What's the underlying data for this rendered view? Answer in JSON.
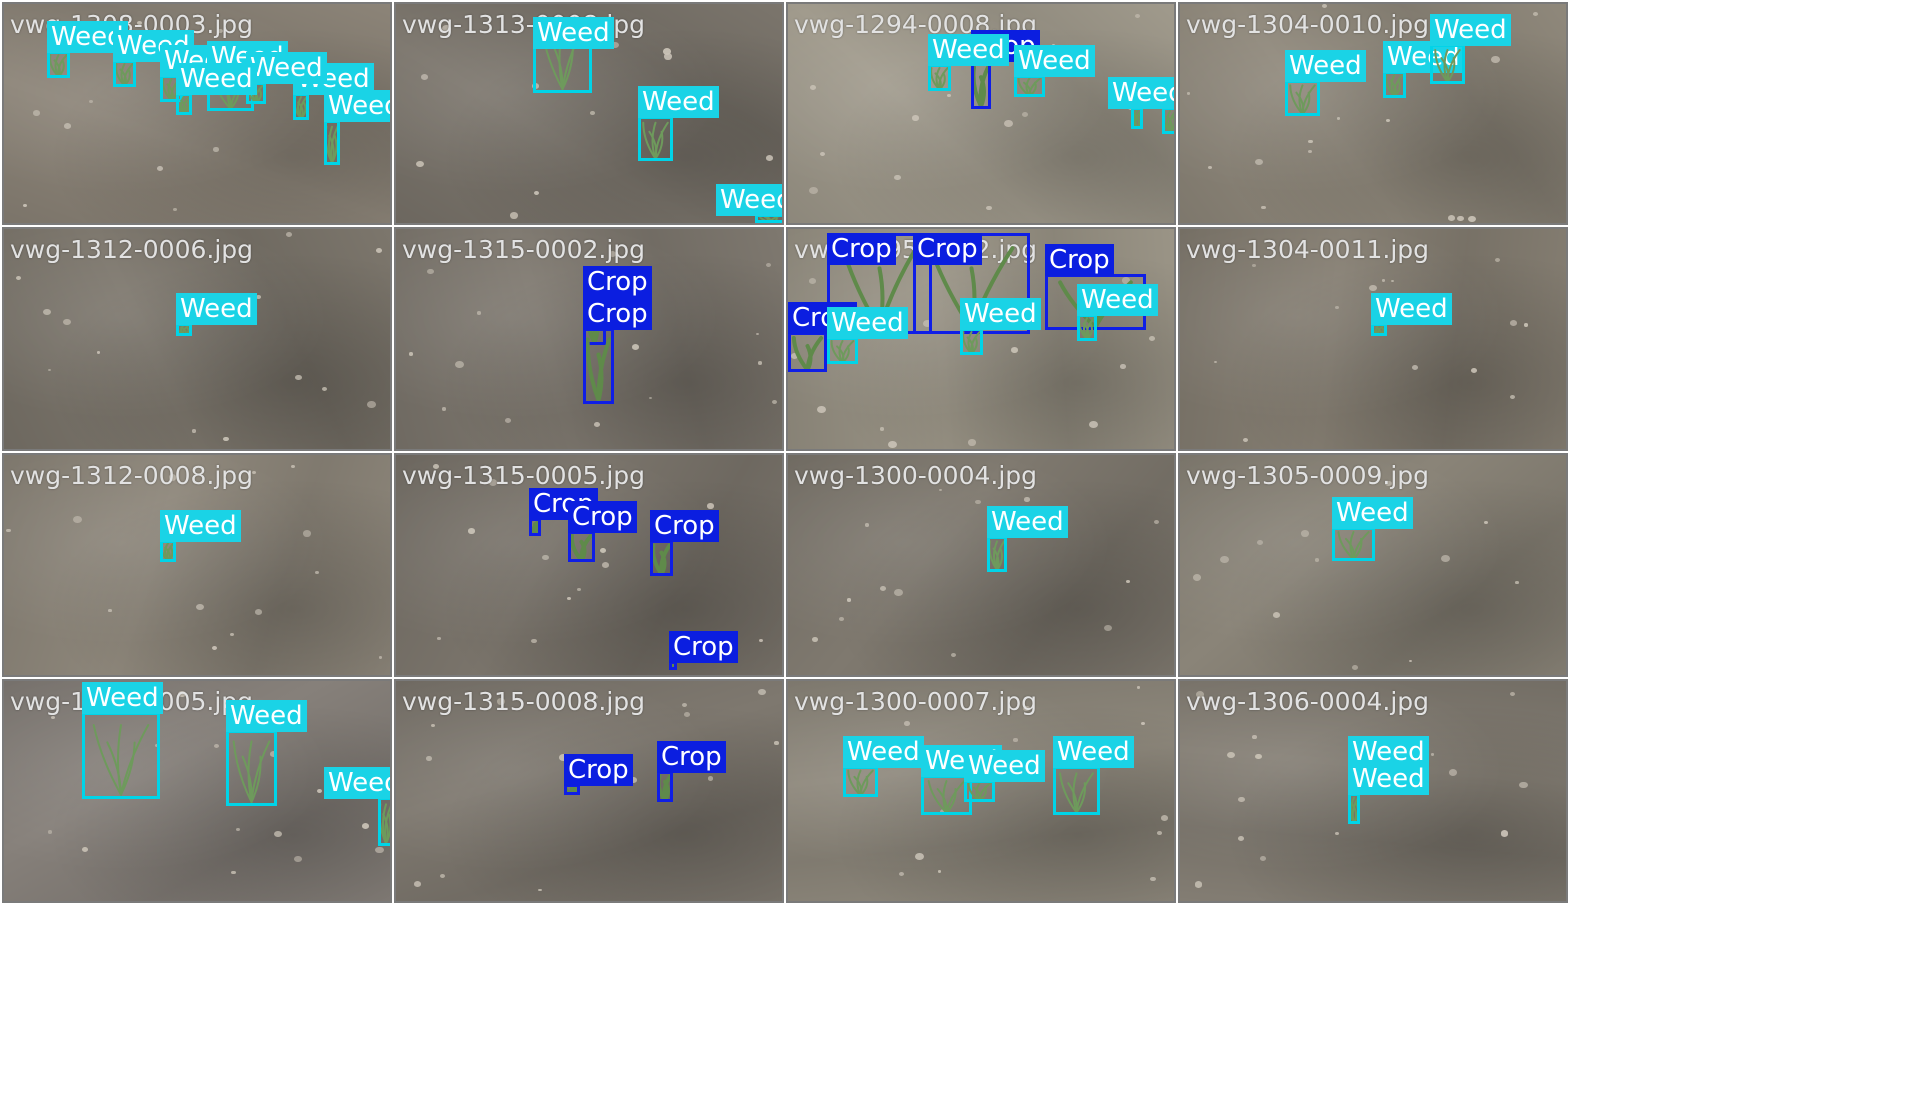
{
  "colors": {
    "weed": "#1ad3e6",
    "crop": "#0b1ee0",
    "border": "#7a7a7a"
  },
  "tiles": [
    {
      "file": "vwg-1308-0003.jpg",
      "tone": "#8c8478",
      "dets": [
        {
          "cls": "Weed",
          "b": [
            0.11,
            0.21,
            0.06,
            0.12
          ]
        },
        {
          "cls": "Weed",
          "b": [
            0.28,
            0.25,
            0.06,
            0.12
          ]
        },
        {
          "cls": "Weed",
          "b": [
            0.4,
            0.32,
            0.06,
            0.12
          ]
        },
        {
          "cls": "Weed",
          "b": [
            0.52,
            0.3,
            0.12,
            0.18
          ]
        },
        {
          "cls": "Weed",
          "b": [
            0.74,
            0.4,
            0.04,
            0.12
          ]
        },
        {
          "cls": "Weed",
          "b": [
            0.82,
            0.52,
            0.04,
            0.2
          ]
        },
        {
          "cls": "Weed",
          "b": [
            0.62,
            0.35,
            0.05,
            0.1
          ]
        },
        {
          "cls": "Weed",
          "b": [
            0.44,
            0.4,
            0.04,
            0.1
          ]
        }
      ]
    },
    {
      "file": "vwg-1313-0008.jpg",
      "tone": "#7b756c",
      "dets": [
        {
          "cls": "Weed",
          "b": [
            0.35,
            0.06,
            0.15,
            0.34
          ]
        },
        {
          "cls": "Weed",
          "b": [
            0.62,
            0.5,
            0.09,
            0.2
          ]
        },
        {
          "cls": "Weed",
          "b": [
            0.92,
            0.94,
            0.08,
            0.04
          ]
        }
      ]
    },
    {
      "file": "vwg-1294-0008.jpg",
      "tone": "#a09a8c",
      "dets": [
        {
          "cls": "Crop",
          "b": [
            0.47,
            0.25,
            0.05,
            0.22
          ]
        },
        {
          "cls": "Weed",
          "b": [
            0.36,
            0.27,
            0.06,
            0.12
          ]
        },
        {
          "cls": "Weed",
          "b": [
            0.58,
            0.32,
            0.08,
            0.1
          ]
        },
        {
          "cls": "Weed",
          "b": [
            0.88,
            0.46,
            0.03,
            0.1
          ]
        },
        {
          "cls": "Weed",
          "b": [
            0.96,
            0.46,
            0.04,
            0.12
          ]
        }
      ]
    },
    {
      "file": "vwg-1304-0010.jpg",
      "tone": "#8f887b",
      "dets": [
        {
          "cls": "Weed",
          "b": [
            0.27,
            0.34,
            0.09,
            0.16
          ]
        },
        {
          "cls": "Weed",
          "b": [
            0.52,
            0.3,
            0.06,
            0.12
          ]
        },
        {
          "cls": "Weed",
          "b": [
            0.64,
            0.18,
            0.09,
            0.18
          ]
        }
      ]
    },
    {
      "file": "vwg-1312-0006.jpg",
      "tone": "#7c766c",
      "dets": [
        {
          "cls": "Weed",
          "b": [
            0.44,
            0.42,
            0.04,
            0.06
          ]
        }
      ]
    },
    {
      "file": "vwg-1315-0002.jpg",
      "tone": "#7e786f",
      "dets": [
        {
          "cls": "Crop",
          "b": [
            0.48,
            0.3,
            0.06,
            0.22
          ]
        },
        {
          "cls": "Crop",
          "b": [
            0.48,
            0.44,
            0.08,
            0.34
          ]
        }
      ]
    },
    {
      "file": "vwg-1295-0012.jpg",
      "tone": "#9a9486",
      "dets": [
        {
          "cls": "Crop",
          "b": [
            0.1,
            0.02,
            0.27,
            0.45
          ]
        },
        {
          "cls": "Crop",
          "b": [
            0.32,
            0.02,
            0.3,
            0.45
          ]
        },
        {
          "cls": "Crop",
          "b": [
            0.66,
            0.2,
            0.26,
            0.25
          ]
        },
        {
          "cls": "Crop",
          "b": [
            0.0,
            0.46,
            0.1,
            0.18
          ]
        },
        {
          "cls": "Weed",
          "b": [
            0.44,
            0.44,
            0.06,
            0.12
          ]
        },
        {
          "cls": "Weed",
          "b": [
            0.74,
            0.38,
            0.05,
            0.12
          ]
        },
        {
          "cls": "Weed",
          "b": [
            0.1,
            0.48,
            0.08,
            0.12
          ]
        }
      ]
    },
    {
      "file": "vwg-1304-0011.jpg",
      "tone": "#857e72",
      "dets": [
        {
          "cls": "Weed",
          "b": [
            0.49,
            0.42,
            0.04,
            0.06
          ]
        }
      ]
    },
    {
      "file": "vwg-1312-0008.jpg",
      "tone": "#8e877b",
      "dets": [
        {
          "cls": "Weed",
          "b": [
            0.4,
            0.38,
            0.04,
            0.1
          ]
        }
      ]
    },
    {
      "file": "vwg-1315-0005.jpg",
      "tone": "#7a746b",
      "dets": [
        {
          "cls": "Crop",
          "b": [
            0.34,
            0.28,
            0.03,
            0.08
          ]
        },
        {
          "cls": "Crop",
          "b": [
            0.44,
            0.34,
            0.07,
            0.14
          ]
        },
        {
          "cls": "Crop",
          "b": [
            0.65,
            0.38,
            0.06,
            0.16
          ]
        },
        {
          "cls": "Crop",
          "b": [
            0.7,
            0.92,
            0.01,
            0.04
          ]
        }
      ]
    },
    {
      "file": "vwg-1300-0004.jpg",
      "tone": "#7f796f",
      "dets": [
        {
          "cls": "Weed",
          "b": [
            0.51,
            0.36,
            0.05,
            0.16
          ]
        }
      ]
    },
    {
      "file": "vwg-1305-0009.jpg",
      "tone": "#8a8478",
      "dets": [
        {
          "cls": "Weed",
          "b": [
            0.39,
            0.32,
            0.11,
            0.15
          ]
        }
      ]
    },
    {
      "file": "vwg-1313-0005.jpg",
      "tone": "#86807a",
      "dets": [
        {
          "cls": "Weed",
          "b": [
            0.2,
            0.14,
            0.2,
            0.39
          ]
        },
        {
          "cls": "Weed",
          "b": [
            0.57,
            0.22,
            0.13,
            0.34
          ]
        },
        {
          "cls": "Weed",
          "b": [
            0.96,
            0.52,
            0.04,
            0.22
          ]
        }
      ]
    },
    {
      "file": "vwg-1315-0008.jpg",
      "tone": "#7e786f",
      "dets": [
        {
          "cls": "Crop",
          "b": [
            0.43,
            0.46,
            0.04,
            0.05
          ]
        },
        {
          "cls": "Crop",
          "b": [
            0.67,
            0.4,
            0.04,
            0.14
          ]
        }
      ]
    },
    {
      "file": "vwg-1300-0007.jpg",
      "tone": "#8e887c",
      "dets": [
        {
          "cls": "Weed",
          "b": [
            0.14,
            0.38,
            0.09,
            0.14
          ]
        },
        {
          "cls": "Weed",
          "b": [
            0.34,
            0.42,
            0.13,
            0.18
          ]
        },
        {
          "cls": "Weed",
          "b": [
            0.45,
            0.44,
            0.08,
            0.1
          ]
        },
        {
          "cls": "Weed",
          "b": [
            0.68,
            0.38,
            0.12,
            0.22
          ]
        }
      ]
    },
    {
      "file": "vwg-1306-0004.jpg",
      "tone": "#837d73",
      "dets": [
        {
          "cls": "Weed",
          "b": [
            0.43,
            0.38,
            0.05,
            0.12
          ]
        },
        {
          "cls": "Weed",
          "b": [
            0.43,
            0.5,
            0.03,
            0.14
          ]
        }
      ]
    }
  ]
}
